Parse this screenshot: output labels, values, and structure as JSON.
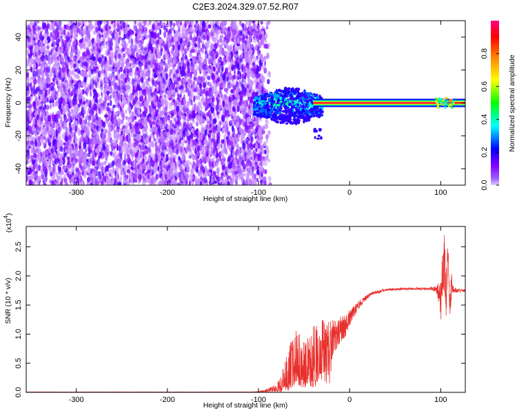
{
  "figure": {
    "title": "C2E3.2024.329.07.52.R07"
  },
  "chart_data": [
    {
      "type": "heatmap",
      "title": "C2E3.2024.329.07.52.R07",
      "xlabel": "Height of straight line (km)",
      "ylabel": "Frequency (Hz)",
      "xlim": [
        -355,
        127
      ],
      "ylim": [
        -50,
        50
      ],
      "xticks": [
        -300,
        -200,
        -100,
        0,
        100
      ],
      "yticks": [
        -40,
        -20,
        0,
        20,
        40
      ],
      "xtick_labels": [
        "-300",
        "-200",
        "-100",
        "0",
        "100"
      ],
      "ytick_labels": [
        "-40",
        "-20",
        "0",
        "20",
        "40"
      ],
      "colorbar": {
        "label": "Normalized spectral amplitude",
        "range": [
          0,
          1
        ],
        "ticks": [
          0.0,
          0.2,
          0.4,
          0.6,
          0.8
        ],
        "tick_labels": [
          "0.0",
          "0.2",
          "0.4",
          "0.6",
          "0.8"
        ],
        "colormap": [
          "#e6ccff",
          "#8000ff",
          "#0000ff",
          "#00ffff",
          "#00ff00",
          "#ffff00",
          "#ff8000",
          "#ff0000",
          "#ff0080"
        ]
      },
      "regions": [
        {
          "name": "noise",
          "x_range": [
            -355,
            -98
          ],
          "freq_range": [
            -50,
            50
          ],
          "amplitude": [
            0.0,
            0.15
          ]
        },
        {
          "name": "onset",
          "x_range": [
            -105,
            -30
          ],
          "freq_range": [
            -23,
            12
          ],
          "amplitude": [
            0.1,
            0.45
          ]
        },
        {
          "name": "carrier",
          "x_range": [
            -30,
            127
          ],
          "freq": 0,
          "amplitude": 0.95
        }
      ]
    },
    {
      "type": "line",
      "xlabel": "Height of straight line (km)",
      "ylabel": "SNR (10 * v/v)",
      "multiplier_label": "(x10",
      "multiplier_exp": "4",
      "multiplier_close": ")",
      "xlim": [
        -355,
        127
      ],
      "ylim": [
        0,
        2.85
      ],
      "xticks": [
        -300,
        -200,
        -100,
        0,
        100
      ],
      "yticks": [
        0.0,
        0.5,
        1.0,
        1.5,
        2.0,
        2.5
      ],
      "xtick_labels": [
        "-300",
        "-200",
        "-100",
        "0",
        "100"
      ],
      "ytick_labels": [
        "0.0",
        "0.5",
        "1.0",
        "1.5",
        "2.0",
        "2.5"
      ],
      "color": "#e8302c",
      "series": [
        {
          "x": [
            -355,
            -300,
            -250,
            -200,
            -150,
            -110,
            -100,
            -90,
            -80,
            -75,
            -70,
            -65,
            -60,
            -55,
            -50,
            -45,
            -40,
            -35,
            -30,
            -25,
            -20,
            -15,
            -10,
            -5,
            0,
            5,
            10,
            15,
            20,
            25,
            30,
            35,
            40,
            50,
            60,
            70,
            80,
            90,
            95,
            98,
            100,
            102,
            104,
            106,
            108,
            110,
            112,
            115,
            120,
            127
          ],
          "y": [
            0.005,
            0.005,
            0.005,
            0.005,
            0.005,
            0.005,
            0.01,
            0.03,
            0.08,
            0.15,
            0.3,
            0.45,
            0.65,
            0.55,
            0.45,
            0.5,
            0.62,
            0.72,
            0.8,
            0.85,
            0.9,
            0.95,
            1.05,
            1.15,
            1.28,
            1.4,
            1.5,
            1.58,
            1.65,
            1.7,
            1.72,
            1.74,
            1.76,
            1.77,
            1.78,
            1.78,
            1.78,
            1.78,
            1.77,
            1.7,
            1.5,
            2.0,
            2.3,
            1.6,
            2.5,
            1.4,
            1.9,
            1.75,
            1.75,
            1.75
          ],
          "noise_amplitude": [
            0.003,
            0.003,
            0.003,
            0.003,
            0.003,
            0.003,
            0.005,
            0.03,
            0.08,
            0.15,
            0.3,
            0.4,
            0.5,
            0.45,
            0.45,
            0.5,
            0.55,
            0.5,
            0.45,
            0.4,
            0.35,
            0.3,
            0.25,
            0.2,
            0.15,
            0.1,
            0.08,
            0.05,
            0.04,
            0.03,
            0.03,
            0.03,
            0.02,
            0.02,
            0.02,
            0.02,
            0.02,
            0.03,
            0.05,
            0.2,
            0.4,
            0.4,
            0.5,
            0.4,
            0.3,
            0.3,
            0.2,
            0.05,
            0.03,
            0.02
          ]
        }
      ]
    }
  ]
}
